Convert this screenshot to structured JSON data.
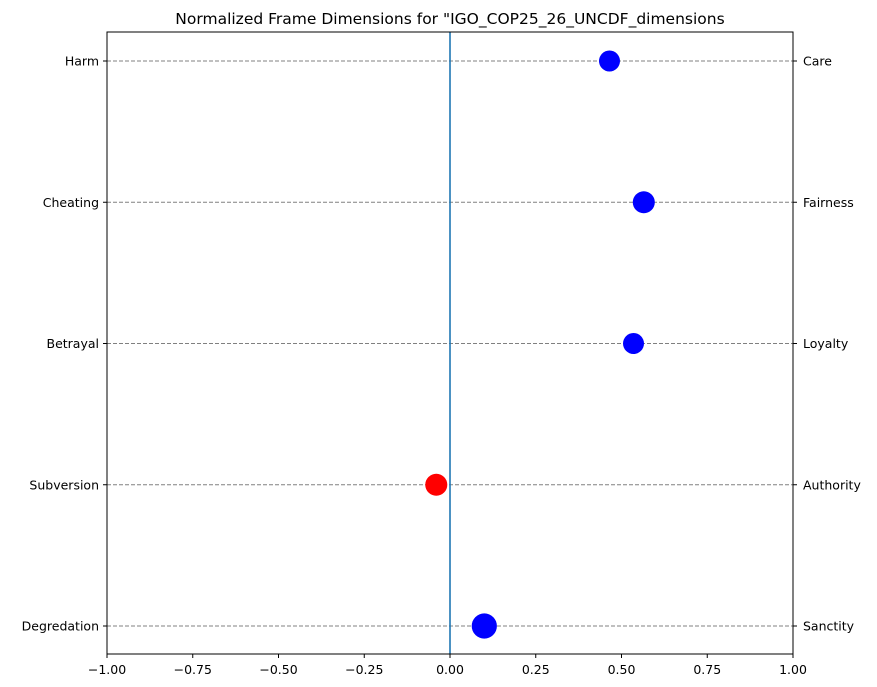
{
  "chart_data": {
    "type": "scatter",
    "title": "Normalized Frame Dimensions for \"IGO_COP25_26_UNCDF_dimensions",
    "xlabel": "",
    "ylabel": "",
    "xlim": [
      -1.0,
      1.0
    ],
    "x_ticks": [
      "−1.00",
      "−0.75",
      "−0.50",
      "−0.25",
      "0.00",
      "0.25",
      "0.50",
      "0.75",
      "1.00"
    ],
    "x_tick_values": [
      -1.0,
      -0.75,
      -0.5,
      -0.25,
      0.0,
      0.25,
      0.5,
      0.75,
      1.0
    ],
    "left_labels": [
      "Harm",
      "Cheating",
      "Betrayal",
      "Subversion",
      "Degredation"
    ],
    "right_labels": [
      "Care",
      "Fairness",
      "Loyalty",
      "Authority",
      "Sanctity"
    ],
    "vertical_line_x": 0.0,
    "grid": "horizontal dashed",
    "points": [
      {
        "x": 0.465,
        "color": "#0000ff",
        "size": 1.0
      },
      {
        "x": 0.565,
        "color": "#0000ff",
        "size": 1.05
      },
      {
        "x": 0.535,
        "color": "#0000ff",
        "size": 1.0
      },
      {
        "x": -0.04,
        "color": "#ff0000",
        "size": 1.05
      },
      {
        "x": 0.1,
        "color": "#0000ff",
        "size": 1.2
      }
    ]
  }
}
